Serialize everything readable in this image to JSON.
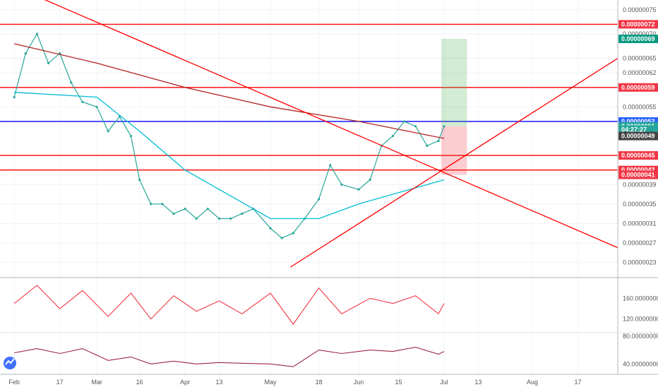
{
  "chart_data": {
    "type": "line",
    "symbol_panel": "price",
    "x_axis": {
      "labels": [
        "Feb",
        "17",
        "Mar",
        "16",
        "Apr",
        "13",
        "May",
        "18",
        "Jun",
        "15",
        "Jul",
        "13",
        "Aug",
        "17"
      ],
      "label_dates": [
        "2020-02-01",
        "2020-02-17",
        "2020-03-01",
        "2020-03-16",
        "2020-04-01",
        "2020-04-13",
        "2020-05-01",
        "2020-05-18",
        "2020-06-01",
        "2020-06-15",
        "2020-07-01",
        "2020-07-13",
        "2020-08-01",
        "2020-08-17"
      ],
      "range": [
        "2020-01-27",
        "2020-08-31"
      ]
    },
    "price_axis": {
      "range": [
        2e-07,
        7.7e-07
      ],
      "ticks": [
        "0.00000075",
        "0.00000070",
        "0.00000065",
        "0.00000062",
        "0.00000055",
        "0.00000039",
        "0.00000035",
        "0.00000031",
        "0.00000027",
        "0.00000023"
      ],
      "tick_values": [
        7.5e-07,
        7e-07,
        6.5e-07,
        6.2e-07,
        5.5e-07,
        3.9e-07,
        3.5e-07,
        3.1e-07,
        2.7e-07,
        2.3e-07
      ]
    },
    "price_tags": [
      {
        "label": "0.00000072",
        "value": 7.2e-07,
        "color": "#f23645"
      },
      {
        "label": "0.00000069",
        "value": 6.9e-07,
        "color": "#089981"
      },
      {
        "label": "0.00000059",
        "value": 5.9e-07,
        "color": "#f23645"
      },
      {
        "label": "0.00000052",
        "value": 5.2e-07,
        "color": "#2962ff"
      },
      {
        "label": "0.00000051",
        "value": 5.1e-07,
        "color": "#26a69a"
      },
      {
        "label": "04:27:27",
        "value": 5.03e-07,
        "color": "#26a69a"
      },
      {
        "label": "0.00000049",
        "value": 4.9e-07,
        "color": "#444444"
      },
      {
        "label": "0.00000045",
        "value": 4.5e-07,
        "color": "#f23645"
      },
      {
        "label": "0.00000042",
        "value": 4.2e-07,
        "color": "#f23645"
      },
      {
        "label": "0.00000041",
        "value": 4.1e-07,
        "color": "#f23645"
      }
    ],
    "horizontal_levels": [
      {
        "value": 7.2e-07,
        "color": "#ff0000"
      },
      {
        "value": 5.9e-07,
        "color": "#ff0000"
      },
      {
        "value": 5.2e-07,
        "color": "#0000ff"
      },
      {
        "value": 4.5e-07,
        "color": "#ff0000"
      },
      {
        "value": 4.2e-07,
        "color": "#ff0000"
      }
    ],
    "trendlines": [
      {
        "from": [
          "2020-02-08",
          7.8e-07
        ],
        "to": [
          "2020-08-31",
          2.6e-07
        ],
        "color": "#ff0000"
      },
      {
        "from": [
          "2020-05-08",
          2.2e-07
        ],
        "to": [
          "2020-08-31",
          6.5e-07
        ],
        "color": "#ff0000"
      }
    ],
    "position_box": {
      "from": "2020-06-30",
      "to": "2020-07-09",
      "entry": 5.1e-07,
      "target": 6.9e-07,
      "stop": 4.1e-07
    },
    "series": [
      {
        "name": "",
        "kind": "close",
        "color": "#26a69a",
        "x": [
          "2020-02-01",
          "2020-02-05",
          "2020-02-09",
          "2020-02-13",
          "2020-02-17",
          "2020-02-21",
          "2020-02-25",
          "2020-03-01",
          "2020-03-05",
          "2020-03-09",
          "2020-03-13",
          "2020-03-16",
          "2020-03-20",
          "2020-03-24",
          "2020-03-28",
          "2020-04-01",
          "2020-04-05",
          "2020-04-09",
          "2020-04-13",
          "2020-04-17",
          "2020-04-21",
          "2020-04-25",
          "2020-05-01",
          "2020-05-05",
          "2020-05-09",
          "2020-05-13",
          "2020-05-18",
          "2020-05-22",
          "2020-05-26",
          "2020-06-01",
          "2020-06-05",
          "2020-06-09",
          "2020-06-13",
          "2020-06-17",
          "2020-06-21",
          "2020-06-25",
          "2020-06-29",
          "2020-07-01"
        ],
        "y": [
          5.7e-07,
          6.6e-07,
          7e-07,
          6.4e-07,
          6.6e-07,
          6e-07,
          5.6e-07,
          5.5e-07,
          5e-07,
          5.3e-07,
          4.9e-07,
          4e-07,
          3.5e-07,
          3.5e-07,
          3.3e-07,
          3.4e-07,
          3.2e-07,
          3.4e-07,
          3.2e-07,
          3.2e-07,
          3.3e-07,
          3.4e-07,
          3e-07,
          2.8e-07,
          2.9e-07,
          3.2e-07,
          3.6e-07,
          4.3e-07,
          3.9e-07,
          3.8e-07,
          4e-07,
          4.7e-07,
          4.9e-07,
          5.2e-07,
          5.1e-07,
          4.7e-07,
          4.8e-07,
          5.1e-07
        ]
      },
      {
        "name": "",
        "kind": "moving-average",
        "color": "#b22222",
        "x": [
          "2020-02-01",
          "2020-03-01",
          "2020-04-01",
          "2020-05-01",
          "2020-06-01",
          "2020-07-01"
        ],
        "y": [
          6.8e-07,
          6.4e-07,
          5.9e-07,
          5.5e-07,
          5.2e-07,
          4.85e-07
        ]
      },
      {
        "name": "",
        "kind": "moving-average",
        "color": "#00bcd4",
        "x": [
          "2020-02-01",
          "2020-03-01",
          "2020-03-16",
          "2020-04-01",
          "2020-05-01",
          "2020-05-18",
          "2020-06-01",
          "2020-07-01"
        ],
        "y": [
          5.8e-07,
          5.7e-07,
          5e-07,
          4.2e-07,
          3.2e-07,
          3.2e-07,
          3.5e-07,
          4e-07
        ]
      }
    ],
    "oscillator_1": {
      "ticks": [
        "160.00000000",
        "120.00000000"
      ],
      "tick_values": [
        160,
        120
      ],
      "range": [
        95,
        200
      ],
      "x": [
        "2020-02-01",
        "2020-02-09",
        "2020-02-17",
        "2020-02-25",
        "2020-03-05",
        "2020-03-13",
        "2020-03-20",
        "2020-03-28",
        "2020-04-05",
        "2020-04-13",
        "2020-04-21",
        "2020-05-01",
        "2020-05-09",
        "2020-05-18",
        "2020-05-26",
        "2020-06-05",
        "2020-06-13",
        "2020-06-21",
        "2020-06-29",
        "2020-07-01"
      ],
      "y": [
        150,
        185,
        140,
        175,
        125,
        170,
        120,
        165,
        135,
        155,
        130,
        170,
        110,
        180,
        130,
        160,
        150,
        165,
        130,
        150
      ]
    },
    "oscillator_2": {
      "ticks": [
        "80.00000000",
        "40.00000000"
      ],
      "tick_values": [
        80,
        40
      ],
      "range": [
        25,
        85
      ],
      "x": [
        "2020-02-01",
        "2020-02-09",
        "2020-02-17",
        "2020-02-25",
        "2020-03-05",
        "2020-03-13",
        "2020-03-20",
        "2020-03-28",
        "2020-04-05",
        "2020-04-13",
        "2020-04-21",
        "2020-05-01",
        "2020-05-09",
        "2020-05-18",
        "2020-05-26",
        "2020-06-05",
        "2020-06-13",
        "2020-06-21",
        "2020-06-29",
        "2020-07-01"
      ],
      "y": [
        56,
        62,
        55,
        62,
        45,
        50,
        40,
        44,
        40,
        42,
        41,
        40,
        36,
        60,
        55,
        60,
        58,
        64,
        54,
        58
      ]
    }
  }
}
